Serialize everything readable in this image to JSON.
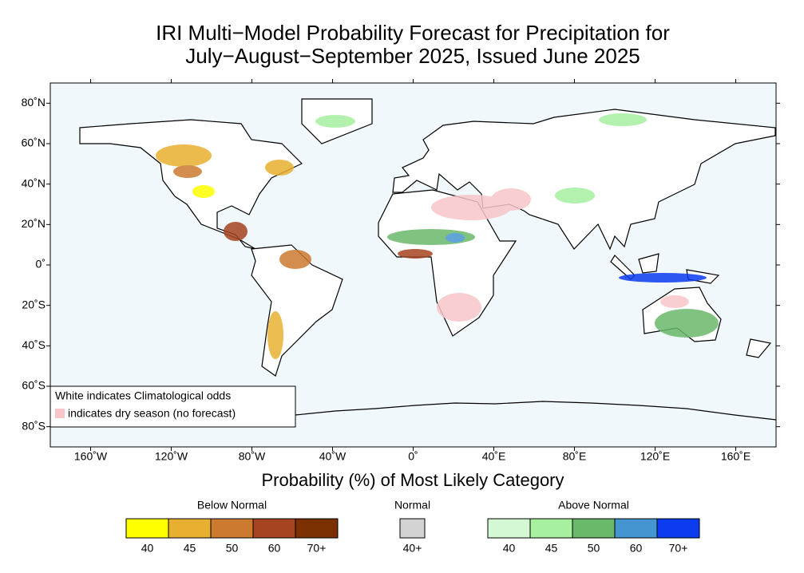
{
  "title": [
    "IRI Multi−Model Probability Forecast for Precipitation for",
    "July−August−September 2025, Issued June 2025"
  ],
  "map": {
    "lonlim": [
      -180,
      180
    ],
    "latlim": [
      -90,
      90
    ],
    "lonticks": [
      {
        "value": -160,
        "label": "160˚W"
      },
      {
        "value": -120,
        "label": "120˚W"
      },
      {
        "value": -80,
        "label": "80˚W"
      },
      {
        "value": -40,
        "label": "40˚W"
      },
      {
        "value": 0,
        "label": "0˚"
      },
      {
        "value": 40,
        "label": "40˚E"
      },
      {
        "value": 80,
        "label": "80˚E"
      },
      {
        "value": 120,
        "label": "120˚E"
      },
      {
        "value": 160,
        "label": "160˚E"
      }
    ],
    "latticks": [
      {
        "value": 80,
        "label": "80˚N"
      },
      {
        "value": 60,
        "label": "60˚N"
      },
      {
        "value": 40,
        "label": "40˚N"
      },
      {
        "value": 20,
        "label": "20˚N"
      },
      {
        "value": 0,
        "label": "0˚"
      },
      {
        "value": -20,
        "label": "20˚S"
      },
      {
        "value": -40,
        "label": "40˚S"
      },
      {
        "value": -60,
        "label": "60˚S"
      },
      {
        "value": -80,
        "label": "80˚S"
      }
    ]
  },
  "legend": {
    "line1": "White indicates Climatological odds",
    "line2": "indicates dry season (no forecast)",
    "dry_color": "#f7c6c9"
  },
  "xlabel": "Probability (%) of Most Likely Category",
  "colorbar": [
    {
      "title": "Below Normal",
      "swatches": [
        {
          "color": "#ffff00",
          "label": "40"
        },
        {
          "color": "#e8b030",
          "label": "45"
        },
        {
          "color": "#cc7a30",
          "label": "50"
        },
        {
          "color": "#a64421",
          "label": "60"
        },
        {
          "color": "#7a3000",
          "label": "70+"
        }
      ]
    },
    {
      "title": "Normal",
      "swatches": [
        {
          "color": "#d3d3d3",
          "label": "40+"
        }
      ]
    },
    {
      "title": "Above Normal",
      "swatches": [
        {
          "color": "#d4f7d4",
          "label": "40"
        },
        {
          "color": "#a6f0a0",
          "label": "45"
        },
        {
          "color": "#6ab86a",
          "label": "50"
        },
        {
          "color": "#4596d0",
          "label": "60"
        },
        {
          "color": "#0b3cf0",
          "label": "70+"
        }
      ]
    }
  ]
}
